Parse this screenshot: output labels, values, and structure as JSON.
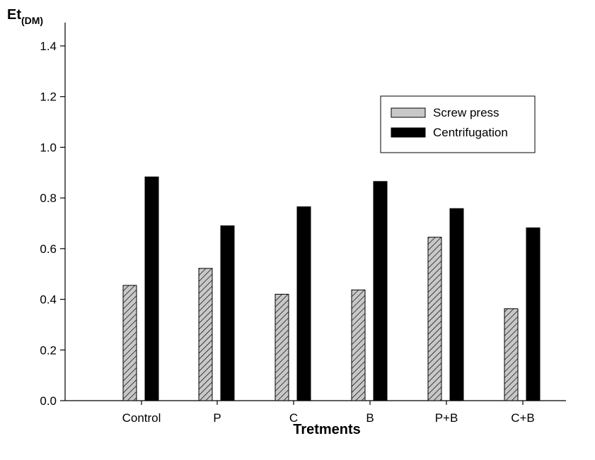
{
  "chart_data": {
    "type": "bar",
    "title": "",
    "xlabel": "Tretments",
    "ylabel_main": "Et",
    "ylabel_sub": "(DM)",
    "ylim": [
      0,
      1.4
    ],
    "yticks": [
      "0.0",
      "0.2",
      "0.4",
      "0.6",
      "0.8",
      "1.0",
      "1.2",
      "1.4"
    ],
    "categories": [
      "Control",
      "P",
      "C",
      "B",
      "P+B",
      "C+B"
    ],
    "series": [
      {
        "name": "Screw press",
        "values": [
          0.455,
          0.522,
          0.42,
          0.437,
          0.645,
          0.363
        ],
        "color": "#c8c8c8",
        "pattern": "hatched"
      },
      {
        "name": "Centrifugation",
        "values": [
          0.883,
          0.69,
          0.765,
          0.865,
          0.758,
          0.682
        ],
        "color": "#000000",
        "pattern": "solid"
      }
    ],
    "legend_position": "top-right",
    "grid": false
  }
}
